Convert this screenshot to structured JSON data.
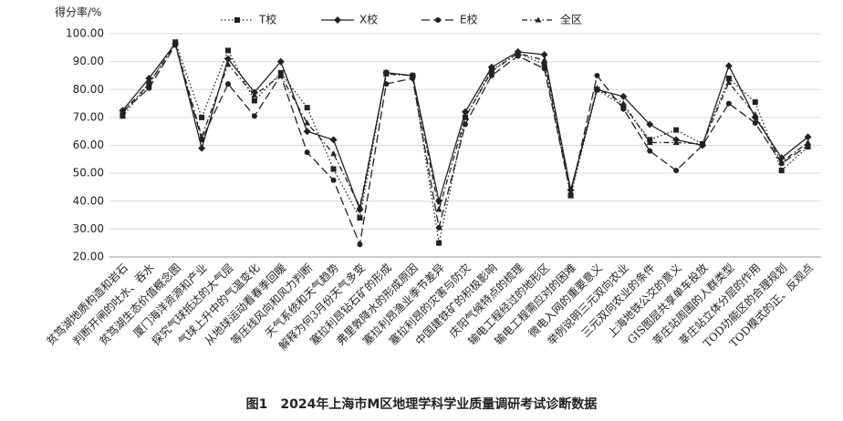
{
  "chart_data": {
    "type": "line",
    "y_label": "得分率/%",
    "caption": "图1　2024年上海市M区地理学科学业质量调研考试诊断数据",
    "categories": [
      "贫笃湖地质构造和岩石",
      "判断开闸的吐水、吞水",
      "贫笃湖生态价值概念图",
      "厦门海洋资源和产业",
      "探究气球抵达的大气层",
      "气球上升中的气温变化",
      "从地球运动看春季回暖",
      "等压线风向和风力判断",
      "天气系统和天气趋势",
      "解释为何3月份天气多变",
      "塞拉利昂钻石矿的形成",
      "弗里敦降水的形成原因",
      "塞拉利昂渔业季节差异",
      "塞拉利昂的灾害与防灾",
      "中国建铁矿的积极影响",
      "庆阳气候特点的梳理",
      "输电工程经过的地形区",
      "输电工程需应对的困难",
      "微电入网的重要意义",
      "举例说明三元双向农业",
      "三元双向农业的条件",
      "上海地铁公交的意义",
      "GIS图层共享单车投放",
      "莘庄站周围的人群类型",
      "莘庄站立体分层的作用",
      "TOD功能区的合理规划",
      "TOD模式的正、反观点"
    ],
    "series": [
      {
        "name": "T校",
        "color": "#222222",
        "values": [
          70.5,
          82,
          97,
          70,
          94,
          76,
          86,
          73.5,
          51.5,
          34,
          86,
          85,
          25,
          70,
          87,
          93,
          89,
          42,
          80,
          74,
          62,
          65.5,
          60.5,
          84,
          75.5,
          51,
          59.5
        ]
      },
      {
        "name": "X校",
        "color": "#222222",
        "values": [
          72.5,
          84,
          96.5,
          59,
          91,
          79,
          90,
          65,
          62,
          37,
          86,
          85,
          40,
          72,
          88,
          93.5,
          92.5,
          44,
          80,
          77.5,
          67.5,
          62,
          60,
          88.5,
          70,
          55.5,
          63
        ]
      },
      {
        "name": "E校",
        "color": "#222222",
        "values": [
          72,
          80.5,
          96,
          62,
          82,
          70.5,
          85,
          57.5,
          47.5,
          24.5,
          82,
          84,
          30.5,
          67.5,
          85,
          92,
          87.5,
          42.5,
          85,
          73,
          58,
          51,
          60,
          75,
          68,
          53.5,
          60
        ]
      },
      {
        "name": "全区",
        "color": "#222222",
        "values": [
          72,
          82,
          96.5,
          63,
          89,
          78,
          85,
          68,
          57,
          38,
          85.5,
          85,
          37,
          70,
          86.5,
          93,
          90.5,
          43,
          80.5,
          75,
          61,
          61,
          60.5,
          82.5,
          71,
          54,
          61
        ]
      }
    ],
    "ylim": [
      20,
      100
    ],
    "yticks": [
      {
        "value": 20,
        "label": "20.00"
      },
      {
        "value": 30,
        "label": "30.00"
      },
      {
        "value": 40,
        "label": "40.00"
      },
      {
        "value": 50,
        "label": "50.00"
      },
      {
        "value": 60,
        "label": "60.00"
      },
      {
        "value": 70,
        "label": "70.00"
      },
      {
        "value": 80,
        "label": "80.00"
      },
      {
        "value": 90,
        "label": "90.00"
      },
      {
        "value": 100,
        "label": "100.00"
      }
    ],
    "grid": true,
    "legend": "top"
  }
}
